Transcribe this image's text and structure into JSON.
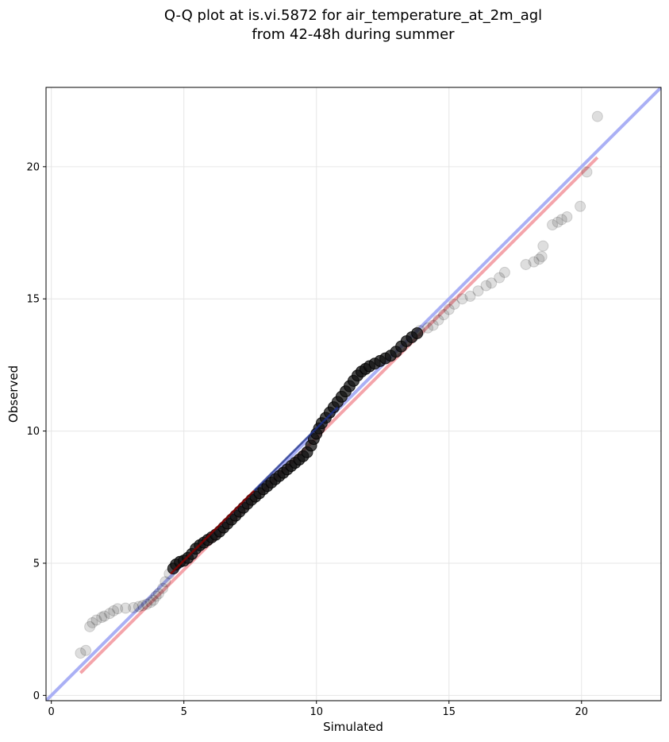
{
  "chart_data": {
    "type": "scatter",
    "title_line1": "Q-Q plot at is.vi.5872 for air_temperature_at_2m_agl",
    "title_line2": "from 42-48h during summer",
    "xlabel": "Simulated",
    "ylabel": "Observed",
    "xlim": [
      -0.2,
      23.0
    ],
    "ylim": [
      -0.2,
      23.0
    ],
    "xticks": [
      0,
      5,
      10,
      15,
      20
    ],
    "yticks": [
      0,
      5,
      10,
      15,
      20
    ],
    "grid": true,
    "reference_line": {
      "name": "1:1 line",
      "color": "#aab0f5",
      "points": [
        [
          -0.2,
          -0.2
        ],
        [
          23.0,
          23.0
        ]
      ]
    },
    "fit_line": {
      "name": "fit",
      "color": "#f4a4aa",
      "points": [
        [
          1.1,
          0.85
        ],
        [
          20.6,
          20.35
        ]
      ]
    },
    "core_line": {
      "colors": [
        "#8b0000",
        "#1c2e8c"
      ],
      "points": [
        [
          4.5,
          4.6
        ],
        [
          10.8,
          10.9
        ]
      ]
    },
    "marker_color": "#000000",
    "tails": [
      [
        1.1,
        1.6
      ],
      [
        1.3,
        1.7
      ],
      [
        1.45,
        2.6
      ],
      [
        1.55,
        2.75
      ],
      [
        1.7,
        2.85
      ],
      [
        1.9,
        2.95
      ],
      [
        2.0,
        3.0
      ],
      [
        2.2,
        3.1
      ],
      [
        2.35,
        3.2
      ],
      [
        2.5,
        3.28
      ],
      [
        2.8,
        3.3
      ],
      [
        3.1,
        3.32
      ],
      [
        3.3,
        3.36
      ],
      [
        3.45,
        3.4
      ],
      [
        3.6,
        3.45
      ],
      [
        3.75,
        3.52
      ],
      [
        3.85,
        3.6
      ],
      [
        3.95,
        3.75
      ],
      [
        4.05,
        3.85
      ],
      [
        4.2,
        4.05
      ],
      [
        4.3,
        4.3
      ],
      [
        4.45,
        4.6
      ],
      [
        13.9,
        13.8
      ],
      [
        14.2,
        13.9
      ],
      [
        14.4,
        14.0
      ],
      [
        14.6,
        14.2
      ],
      [
        14.8,
        14.4
      ],
      [
        15.0,
        14.6
      ],
      [
        15.2,
        14.8
      ],
      [
        15.5,
        15.0
      ],
      [
        15.8,
        15.1
      ],
      [
        16.1,
        15.3
      ],
      [
        16.4,
        15.5
      ],
      [
        16.6,
        15.6
      ],
      [
        16.9,
        15.8
      ],
      [
        17.1,
        16.0
      ],
      [
        17.9,
        16.3
      ],
      [
        18.2,
        16.4
      ],
      [
        18.4,
        16.5
      ],
      [
        18.5,
        16.6
      ],
      [
        18.55,
        17.0
      ],
      [
        18.9,
        17.8
      ],
      [
        19.1,
        17.9
      ],
      [
        19.25,
        18.0
      ],
      [
        19.45,
        18.1
      ],
      [
        19.95,
        18.5
      ],
      [
        20.2,
        19.8
      ],
      [
        20.6,
        21.9
      ]
    ],
    "core": [
      [
        4.6,
        4.8
      ],
      [
        4.7,
        4.95
      ],
      [
        4.85,
        5.05
      ],
      [
        5.0,
        5.1
      ],
      [
        5.15,
        5.2
      ],
      [
        5.3,
        5.35
      ],
      [
        5.45,
        5.55
      ],
      [
        5.6,
        5.68
      ],
      [
        5.75,
        5.78
      ],
      [
        5.9,
        5.88
      ],
      [
        6.05,
        5.98
      ],
      [
        6.2,
        6.08
      ],
      [
        6.35,
        6.2
      ],
      [
        6.5,
        6.35
      ],
      [
        6.65,
        6.5
      ],
      [
        6.8,
        6.65
      ],
      [
        6.95,
        6.8
      ],
      [
        7.1,
        6.95
      ],
      [
        7.25,
        7.1
      ],
      [
        7.4,
        7.25
      ],
      [
        7.55,
        7.4
      ],
      [
        7.7,
        7.52
      ],
      [
        7.85,
        7.65
      ],
      [
        8.0,
        7.8
      ],
      [
        8.15,
        7.92
      ],
      [
        8.3,
        8.05
      ],
      [
        8.45,
        8.18
      ],
      [
        8.6,
        8.3
      ],
      [
        8.75,
        8.42
      ],
      [
        8.9,
        8.55
      ],
      [
        9.05,
        8.68
      ],
      [
        9.2,
        8.8
      ],
      [
        9.35,
        8.92
      ],
      [
        9.5,
        9.05
      ],
      [
        9.65,
        9.2
      ],
      [
        9.8,
        9.45
      ],
      [
        9.9,
        9.7
      ],
      [
        10.0,
        9.9
      ],
      [
        10.1,
        10.1
      ],
      [
        10.2,
        10.3
      ],
      [
        10.35,
        10.5
      ],
      [
        10.5,
        10.7
      ],
      [
        10.65,
        10.9
      ],
      [
        10.8,
        11.1
      ],
      [
        10.95,
        11.3
      ],
      [
        11.1,
        11.5
      ],
      [
        11.25,
        11.7
      ],
      [
        11.4,
        11.9
      ],
      [
        11.55,
        12.1
      ],
      [
        11.7,
        12.25
      ],
      [
        11.85,
        12.35
      ],
      [
        12.0,
        12.45
      ],
      [
        12.2,
        12.55
      ],
      [
        12.4,
        12.65
      ],
      [
        12.6,
        12.75
      ],
      [
        12.8,
        12.85
      ],
      [
        13.0,
        13.0
      ],
      [
        13.2,
        13.2
      ],
      [
        13.4,
        13.4
      ],
      [
        13.6,
        13.55
      ],
      [
        13.8,
        13.7
      ]
    ]
  }
}
